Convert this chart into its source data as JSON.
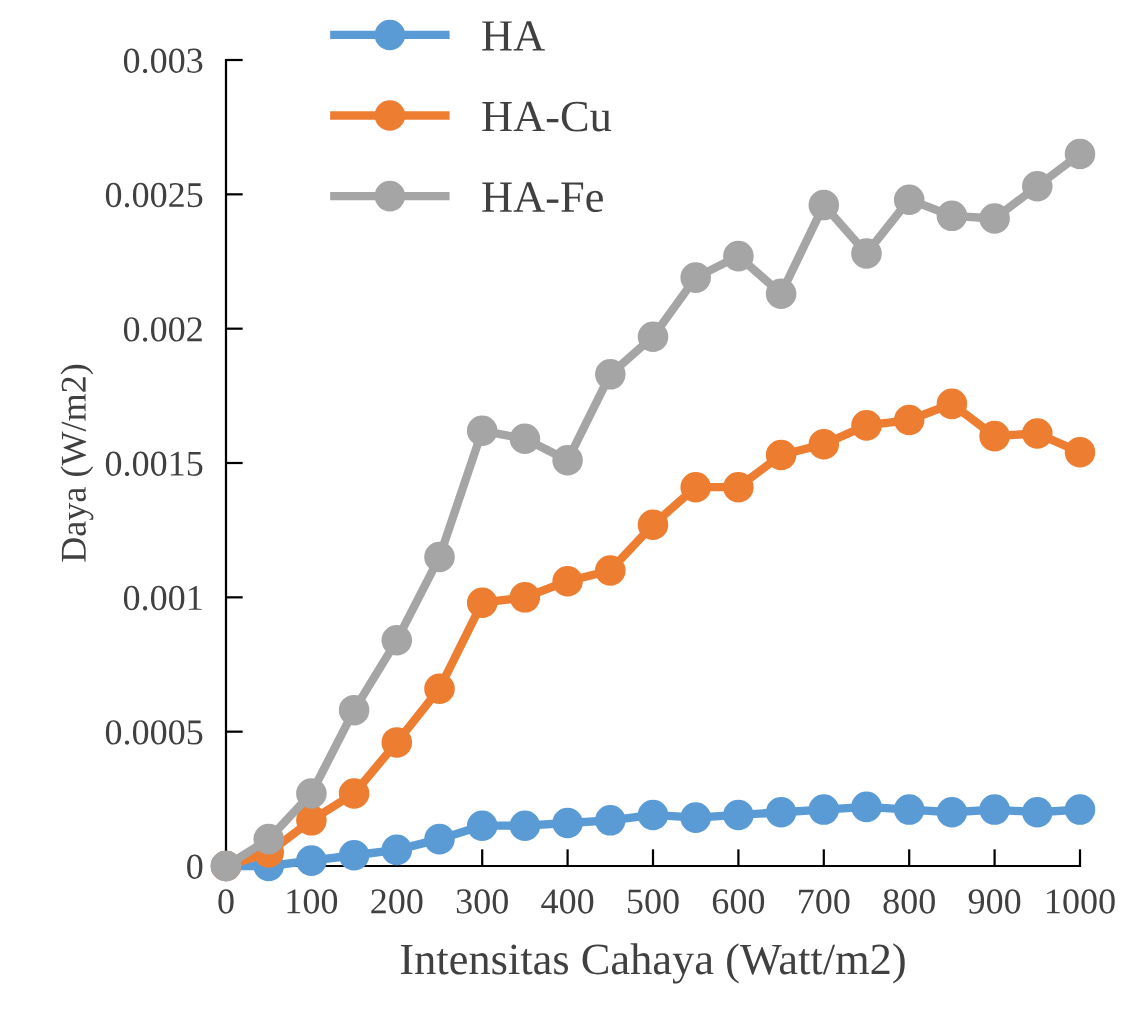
{
  "chart_data": {
    "type": "line",
    "xlabel": "Intensitas Cahaya (Watt/m2)",
    "ylabel": "Daya (W/m2)",
    "x": [
      0,
      50,
      100,
      150,
      200,
      250,
      300,
      350,
      400,
      450,
      500,
      550,
      600,
      650,
      700,
      750,
      800,
      850,
      900,
      950,
      1000
    ],
    "series": [
      {
        "name": "HA",
        "color": "#5b9bd5",
        "values": [
          0,
          0,
          2e-05,
          4e-05,
          6e-05,
          0.0001,
          0.00015,
          0.00015,
          0.00016,
          0.00017,
          0.00019,
          0.00018,
          0.00019,
          0.0002,
          0.00021,
          0.00022,
          0.00021,
          0.0002,
          0.00021,
          0.0002,
          0.00021
        ]
      },
      {
        "name": "HA-Cu",
        "color": "#ed7d31",
        "values": [
          0,
          5e-05,
          0.00017,
          0.00027,
          0.00046,
          0.00066,
          0.00098,
          0.001,
          0.00106,
          0.0011,
          0.00127,
          0.00141,
          0.00141,
          0.00153,
          0.00157,
          0.00164,
          0.00166,
          0.00172,
          0.0016,
          0.00161,
          0.00154
        ]
      },
      {
        "name": "HA-Fe",
        "color": "#a5a5a5",
        "values": [
          0,
          0.0001,
          0.00027,
          0.00058,
          0.00084,
          0.00115,
          0.00162,
          0.00159,
          0.00151,
          0.00183,
          0.00197,
          0.00219,
          0.00227,
          0.00213,
          0.00246,
          0.00228,
          0.00248,
          0.00242,
          0.00241,
          0.00253,
          0.00265
        ]
      }
    ],
    "xlim": [
      0,
      1000
    ],
    "xticks": [
      0,
      100,
      200,
      300,
      400,
      500,
      600,
      700,
      800,
      900,
      1000
    ],
    "ylim": [
      0,
      0.003
    ],
    "yticks": [
      0,
      0.0005,
      0.001,
      0.0015,
      0.002,
      0.0025,
      0.003
    ],
    "marker": "circle",
    "line_style": "solid",
    "grid": false,
    "legend": "top left"
  }
}
